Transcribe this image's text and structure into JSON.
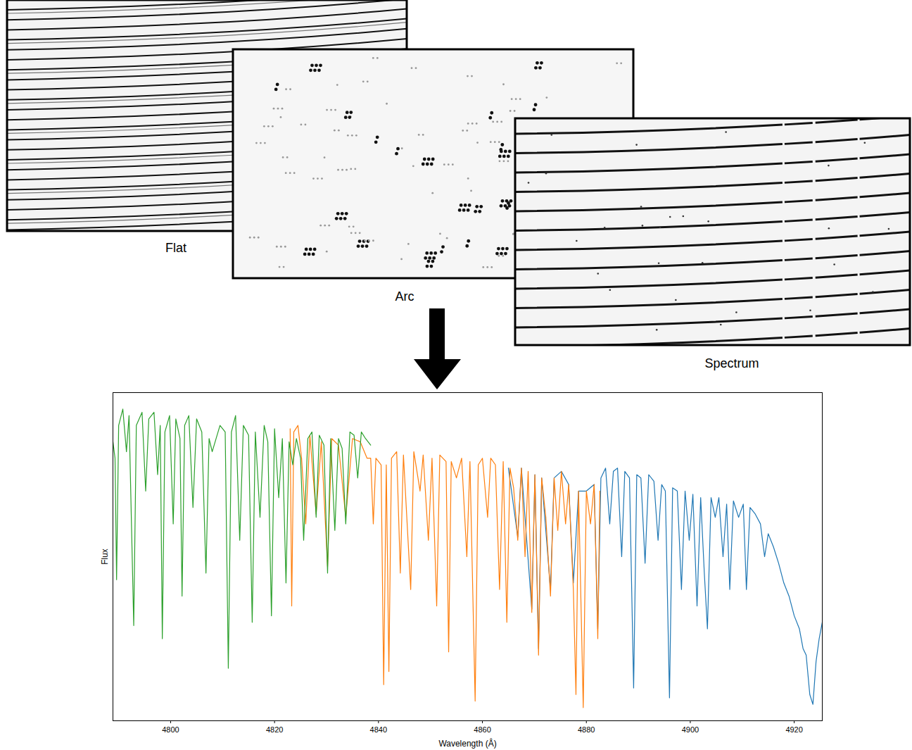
{
  "panels": [
    {
      "label": "Flat"
    },
    {
      "label": "Arc"
    },
    {
      "label": "Spectrum"
    }
  ],
  "chart_data": {
    "type": "line",
    "xlabel": "Wavelength (Å)",
    "ylabel": "Flux",
    "xlim": [
      4788.9,
      4925.4
    ],
    "xticks": [
      4800,
      4820,
      4840,
      4860,
      4880,
      4900,
      4920
    ],
    "ylim": [
      0,
      1
    ],
    "yticks": [],
    "tick_labels": "x",
    "series": [
      {
        "color": "#2ca02c",
        "x": [
          4788.9,
          4789.3,
          4789.6,
          4790.0,
          4790.8,
          4791.5,
          4792.0,
          4792.9,
          4793.4,
          4794.5,
          4795.2,
          4795.8,
          4796.8,
          4797.5,
          4798.0,
          4798.4,
          4798.9,
          4799.8,
          4800.5,
          4801.0,
          4801.8,
          4802.2,
          4802.7,
          4803.5,
          4804.3,
          4805.0,
          4806.0,
          4806.8,
          4807.4,
          4808.0,
          4809.5,
          4810.5,
          4811.1,
          4811.7,
          4812.5,
          4813.3,
          4814.0,
          4815.0,
          4815.7,
          4816.3,
          4817.2,
          4818.0,
          4818.7,
          4819.4,
          4820.0,
          4820.8,
          4821.5,
          4822.2,
          4822.8,
          4823.5,
          4824.2,
          4825.0,
          4825.6,
          4826.4,
          4827.2,
          4828.0,
          4828.6,
          4829.5,
          4830.2,
          4830.8,
          4831.6,
          4832.3,
          4833.0,
          4833.7,
          4834.5,
          4835.3,
          4836.0,
          4836.7,
          4837.5,
          4838.5
        ],
        "values": [
          0.85,
          0.8,
          0.43,
          0.9,
          0.95,
          0.82,
          0.93,
          0.29,
          0.9,
          0.94,
          0.7,
          0.92,
          0.94,
          0.75,
          0.9,
          0.25,
          0.88,
          0.93,
          0.6,
          0.92,
          0.86,
          0.38,
          0.9,
          0.93,
          0.65,
          0.92,
          0.88,
          0.45,
          0.86,
          0.82,
          0.9,
          0.88,
          0.16,
          0.88,
          0.93,
          0.55,
          0.9,
          0.87,
          0.3,
          0.88,
          0.62,
          0.9,
          0.85,
          0.32,
          0.89,
          0.68,
          0.86,
          0.42,
          0.85,
          0.78,
          0.86,
          0.8,
          0.55,
          0.86,
          0.88,
          0.62,
          0.87,
          0.84,
          0.45,
          0.86,
          0.58,
          0.86,
          0.83,
          0.6,
          0.88,
          0.87,
          0.74,
          0.88,
          0.86,
          0.84
        ]
      },
      {
        "color": "#ff7f0e",
        "x": [
          4823.0,
          4823.3,
          4823.7,
          4824.5,
          4825.2,
          4826.0,
          4826.8,
          4828.0,
          4829.0,
          4830.2,
          4831.0,
          4832.3,
          4833.7,
          4835.0,
          4836.5,
          4837.8,
          4838.5,
          4839.0,
          4839.5,
          4840.5,
          4841.0,
          4841.5,
          4842.0,
          4842.5,
          4843.5,
          4844.2,
          4844.8,
          4846.2,
          4846.8,
          4848.0,
          4848.6,
          4849.6,
          4850.3,
          4851.2,
          4851.8,
          4853.0,
          4853.5,
          4854.0,
          4855.0,
          4856.0,
          4857.0,
          4857.6,
          4858.6,
          4859.2,
          4860.0,
          4861.0,
          4861.6,
          4862.5,
          4863.3,
          4864.0,
          4864.7,
          4865.3,
          4866.0,
          4866.8,
          4867.5,
          4868.2,
          4868.8,
          4869.5,
          4870.1,
          4870.8,
          4871.4,
          4872.2,
          4873.1,
          4873.8,
          4874.5,
          4875.2,
          4876.0,
          4876.6,
          4877.5,
          4878.0,
          4878.5,
          4879.4,
          4880.0,
          4880.8,
          4881.5,
          4882.2,
          4882.6
        ],
        "values": [
          0.89,
          0.35,
          0.88,
          0.9,
          0.8,
          0.6,
          0.87,
          0.63,
          0.85,
          0.47,
          0.86,
          0.84,
          0.62,
          0.86,
          0.85,
          0.8,
          0.8,
          0.6,
          0.8,
          0.78,
          0.11,
          0.78,
          0.15,
          0.8,
          0.82,
          0.45,
          0.81,
          0.4,
          0.82,
          0.7,
          0.81,
          0.55,
          0.8,
          0.35,
          0.81,
          0.79,
          0.21,
          0.79,
          0.74,
          0.8,
          0.5,
          0.79,
          0.06,
          0.78,
          0.8,
          0.62,
          0.8,
          0.78,
          0.4,
          0.79,
          0.3,
          0.77,
          0.71,
          0.55,
          0.77,
          0.5,
          0.76,
          0.33,
          0.75,
          0.2,
          0.74,
          0.62,
          0.38,
          0.74,
          0.58,
          0.76,
          0.6,
          0.72,
          0.4,
          0.08,
          0.7,
          0.04,
          0.7,
          0.6,
          0.72,
          0.25,
          0.7
        ]
      },
      {
        "color": "#1f77b4",
        "x": [
          4865.0,
          4866.8,
          4867.5,
          4869.5,
          4870.1,
          4870.8,
          4871.4,
          4873.1,
          4873.8,
          4875.2,
          4876.6,
          4877.5,
          4878.5,
          4880.0,
          4881.5,
          4882.2,
          4882.8,
          4883.7,
          4884.5,
          4885.2,
          4886.0,
          4886.8,
          4887.4,
          4888.3,
          4889.1,
          4889.7,
          4890.5,
          4891.3,
          4892.0,
          4893.0,
          4893.8,
          4894.5,
          4895.2,
          4896.0,
          4896.6,
          4897.5,
          4898.3,
          4899.0,
          4899.8,
          4900.5,
          4901.3,
          4902.0,
          4902.7,
          4903.3,
          4904.0,
          4904.8,
          4905.5,
          4906.3,
          4907.0,
          4907.6,
          4908.3,
          4909.3,
          4910.2,
          4910.8,
          4911.5,
          4912.5,
          4913.5,
          4914.3,
          4915.0,
          4916.0,
          4917.0,
          4918.0,
          4919.0,
          4920.0,
          4921.0,
          4921.7,
          4922.3,
          4923.0,
          4923.6,
          4924.2,
          4924.8,
          4925.4
        ],
        "values": [
          0.77,
          0.56,
          0.77,
          0.34,
          0.75,
          0.22,
          0.74,
          0.4,
          0.74,
          0.76,
          0.72,
          0.42,
          0.7,
          0.7,
          0.72,
          0.28,
          0.74,
          0.77,
          0.6,
          0.76,
          0.77,
          0.5,
          0.76,
          0.74,
          0.1,
          0.75,
          0.74,
          0.48,
          0.75,
          0.73,
          0.55,
          0.72,
          0.7,
          0.07,
          0.71,
          0.7,
          0.4,
          0.7,
          0.55,
          0.69,
          0.35,
          0.68,
          0.45,
          0.28,
          0.68,
          0.62,
          0.68,
          0.5,
          0.66,
          0.4,
          0.67,
          0.62,
          0.66,
          0.4,
          0.65,
          0.63,
          0.6,
          0.5,
          0.57,
          0.53,
          0.48,
          0.42,
          0.38,
          0.32,
          0.28,
          0.22,
          0.2,
          0.08,
          0.05,
          0.18,
          0.25,
          0.3
        ]
      }
    ]
  }
}
